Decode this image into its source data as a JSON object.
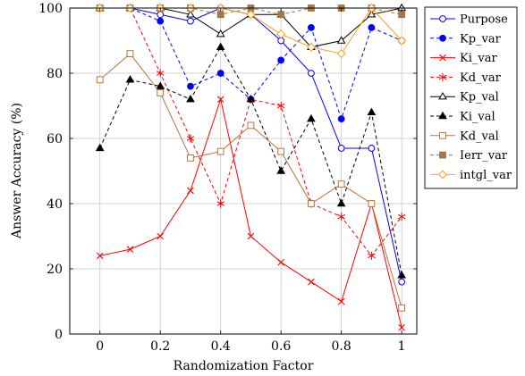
{
  "chart_data": {
    "type": "line",
    "xlabel": "Randomization Factor",
    "ylabel": "Answer Accuracy (%)",
    "xlim": [
      -0.1,
      1.05
    ],
    "ylim": [
      0,
      100
    ],
    "xticks": [
      0,
      0.2,
      0.4,
      0.6,
      0.8,
      1
    ],
    "xtick_labels": [
      "0",
      "0.2",
      "0.4",
      "0.6",
      "0.8",
      "1"
    ],
    "yticks": [
      0,
      20,
      40,
      60,
      80,
      100
    ],
    "ytick_labels": [
      "0",
      "20",
      "40",
      "60",
      "80",
      "100"
    ],
    "grid": true,
    "legend_position": "outside-right-top",
    "x": [
      0,
      0.1,
      0.2,
      0.3,
      0.4,
      0.5,
      0.6,
      0.7,
      0.8,
      0.9,
      1
    ],
    "series": [
      {
        "name": "Purpose",
        "color": "#0000ff",
        "dash": "solid",
        "marker": "circle-open",
        "values": [
          100,
          100,
          98,
          96,
          100,
          98,
          90,
          80,
          57,
          57,
          16
        ]
      },
      {
        "name": "Kp_var",
        "color": "#0000ff",
        "dash": "dashed",
        "marker": "circle-filled",
        "values": [
          100,
          100,
          96,
          76,
          80,
          72,
          84,
          94,
          66,
          94,
          90
        ]
      },
      {
        "name": "Ki_var",
        "color": "#ff0000",
        "dash": "solid",
        "marker": "x",
        "values": [
          24,
          26,
          30,
          44,
          72,
          30,
          22,
          16,
          10,
          40,
          2
        ]
      },
      {
        "name": "Kd_var",
        "color": "#ff0000",
        "dash": "dashed",
        "marker": "asterisk",
        "values": [
          100,
          100,
          80,
          60,
          40,
          72,
          70,
          40,
          36,
          24,
          36
        ]
      },
      {
        "name": "Kp_val",
        "color": "#000000",
        "dash": "solid",
        "marker": "triangle-open",
        "values": [
          100,
          100,
          100,
          98,
          92,
          98,
          98,
          88,
          90,
          98,
          100
        ]
      },
      {
        "name": "Ki_val",
        "color": "#000000",
        "dash": "dashed",
        "marker": "triangle-filled",
        "values": [
          57,
          78,
          76,
          72,
          88,
          72,
          50,
          66,
          40,
          68,
          18
        ]
      },
      {
        "name": "Kd_val",
        "color": "#b5753d",
        "dash": "solid",
        "marker": "square-open",
        "values": [
          78,
          86,
          74,
          54,
          56,
          64,
          56,
          40,
          46,
          40,
          8
        ]
      },
      {
        "name": "Ierr_var",
        "color": "#a67744",
        "dash": "dashed",
        "marker": "square-filled",
        "values": [
          100,
          100,
          100,
          100,
          98,
          100,
          98,
          100,
          100,
          100,
          98
        ]
      },
      {
        "name": "intgl_var",
        "color": "#f7a21b",
        "dash": "solid",
        "marker": "diamond-open",
        "values": [
          100,
          100,
          100,
          100,
          100,
          98,
          92,
          88,
          86,
          100,
          90
        ]
      }
    ]
  }
}
